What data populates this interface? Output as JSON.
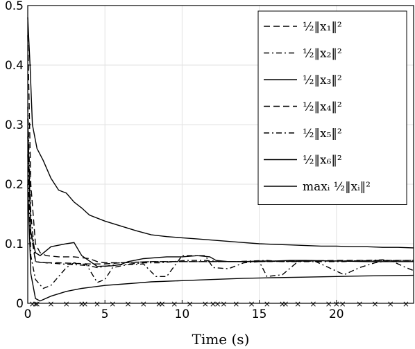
{
  "chart_data": {
    "type": "line",
    "title": "",
    "xlabel": "Time (s)",
    "ylabel": "",
    "xlim": [
      0,
      25
    ],
    "ylim": [
      0,
      0.5
    ],
    "x_ticks": [
      0,
      5,
      10,
      15,
      20
    ],
    "y_ticks": [
      0,
      0.1,
      0.2,
      0.3,
      0.4,
      0.5
    ],
    "x_tick_labels": [
      "0",
      "5",
      "10",
      "15",
      "20"
    ],
    "y_tick_labels": [
      "0",
      "0.1",
      "0.2",
      "0.3",
      "0.4",
      "0.5"
    ],
    "grid": true,
    "legend_position": "top-right",
    "color": "#000000",
    "series": [
      {
        "name": "½‖x₁‖²",
        "style": "dashed",
        "x": [
          0,
          0.2,
          0.5,
          0.8,
          1.2,
          2,
          3,
          4,
          4.5,
          5,
          6,
          8,
          10,
          12,
          15,
          20,
          25
        ],
        "y": [
          0.45,
          0.2,
          0.1,
          0.085,
          0.08,
          0.078,
          0.078,
          0.075,
          0.07,
          0.068,
          0.068,
          0.07,
          0.07,
          0.07,
          0.07,
          0.071,
          0.072
        ]
      },
      {
        "name": "½‖x₂‖²",
        "style": "dashdot",
        "x": [
          0,
          0.2,
          0.5,
          0.8,
          1.2,
          1.8,
          2.2,
          3,
          4,
          4.5,
          5.5,
          6.2,
          7.5,
          8.5,
          9.5,
          10.2,
          11.5,
          12.5,
          13.5,
          14.5,
          15.5,
          16.5,
          17.5,
          18.5,
          19.5,
          20.5,
          22,
          23,
          24,
          25
        ],
        "y": [
          0.33,
          0.15,
          0.07,
          0.069,
          0.068,
          0.067,
          0.066,
          0.065,
          0.063,
          0.06,
          0.064,
          0.065,
          0.068,
          0.068,
          0.07,
          0.072,
          0.072,
          0.07,
          0.07,
          0.071,
          0.072,
          0.07,
          0.07,
          0.07,
          0.07,
          0.07,
          0.072,
          0.073,
          0.07,
          0.07
        ]
      },
      {
        "name": "½‖x₃‖²",
        "style": "solid",
        "x": [
          0,
          0.2,
          0.5,
          0.8,
          1.5,
          2.5,
          3,
          3.5,
          4.5,
          5.5,
          6,
          6.5,
          7.5,
          9,
          10,
          11,
          11.8,
          12.2,
          13,
          14,
          15,
          16,
          17,
          18,
          20,
          22,
          24,
          25
        ],
        "y": [
          0.31,
          0.12,
          0.085,
          0.08,
          0.095,
          0.1,
          0.102,
          0.08,
          0.062,
          0.063,
          0.065,
          0.07,
          0.075,
          0.078,
          0.078,
          0.08,
          0.078,
          0.072,
          0.07,
          0.07,
          0.071,
          0.071,
          0.072,
          0.072,
          0.071,
          0.07,
          0.07,
          0.07
        ]
      },
      {
        "name": "½‖x₄‖²",
        "style": "dashed",
        "x": [
          0,
          0.2,
          0.5,
          1,
          2,
          3,
          4,
          5,
          6,
          8,
          10,
          12,
          15,
          20,
          25
        ],
        "y": [
          0.28,
          0.12,
          0.07,
          0.068,
          0.068,
          0.067,
          0.066,
          0.066,
          0.068,
          0.07,
          0.07,
          0.07,
          0.07,
          0.072,
          0.072
        ]
      },
      {
        "name": "½‖x₅‖²",
        "style": "dashdot",
        "x": [
          0,
          0.2,
          0.5,
          1,
          1.5,
          2,
          2.5,
          3,
          3.8,
          4.5,
          5,
          5.5,
          6.5,
          7.5,
          8.3,
          9,
          10,
          11,
          11.5,
          12,
          13,
          14,
          15,
          15.5,
          16.5,
          17.5,
          18.5,
          19.5,
          20.5,
          21.5,
          22.5,
          23.5,
          24.5,
          25
        ],
        "y": [
          0.25,
          0.08,
          0.04,
          0.025,
          0.03,
          0.045,
          0.06,
          0.068,
          0.065,
          0.035,
          0.04,
          0.06,
          0.065,
          0.066,
          0.045,
          0.045,
          0.08,
          0.08,
          0.08,
          0.06,
          0.058,
          0.068,
          0.07,
          0.045,
          0.048,
          0.07,
          0.072,
          0.06,
          0.048,
          0.06,
          0.068,
          0.072,
          0.06,
          0.055
        ]
      },
      {
        "name": "½‖x₆‖²",
        "style": "solid",
        "x": [
          0,
          0.2,
          0.5,
          0.8,
          1.5,
          2.5,
          3.5,
          5,
          6,
          7,
          8,
          10,
          12,
          14,
          16,
          18,
          20,
          22,
          25
        ],
        "y": [
          0.2,
          0.05,
          0.008,
          0.004,
          0.012,
          0.02,
          0.025,
          0.03,
          0.032,
          0.034,
          0.036,
          0.038,
          0.04,
          0.042,
          0.043,
          0.044,
          0.045,
          0.046,
          0.047
        ]
      },
      {
        "name": "maxᵢ ½‖xᵢ‖²",
        "style": "solid",
        "x": [
          0,
          0.15,
          0.3,
          0.6,
          1,
          1.5,
          2,
          2.5,
          3,
          3.5,
          4,
          5,
          6,
          7,
          8,
          9,
          10,
          11,
          12,
          13,
          14,
          15,
          16,
          17,
          18,
          19,
          20,
          21,
          22,
          23,
          24,
          25
        ],
        "y": [
          0.48,
          0.4,
          0.3,
          0.26,
          0.24,
          0.21,
          0.19,
          0.185,
          0.17,
          0.16,
          0.148,
          0.138,
          0.13,
          0.122,
          0.115,
          0.112,
          0.11,
          0.108,
          0.106,
          0.104,
          0.102,
          0.1,
          0.099,
          0.098,
          0.097,
          0.096,
          0.096,
          0.095,
          0.095,
          0.094,
          0.094,
          0.093
        ]
      }
    ],
    "markers": {
      "symbol": "×",
      "y": 0,
      "x": [
        0.3,
        0.5,
        0.6,
        1.5,
        2.5,
        3.5,
        3.7,
        4.5,
        5.5,
        6.5,
        7.5,
        8.5,
        8.7,
        9.5,
        10.5,
        11.5,
        12.0,
        12.3,
        12.7,
        13.5,
        14.5,
        15.5,
        16.5,
        16.7,
        17.5,
        18.5,
        19.5,
        20.0,
        20.4,
        21.5,
        22.5,
        23.5,
        24.5
      ]
    }
  }
}
